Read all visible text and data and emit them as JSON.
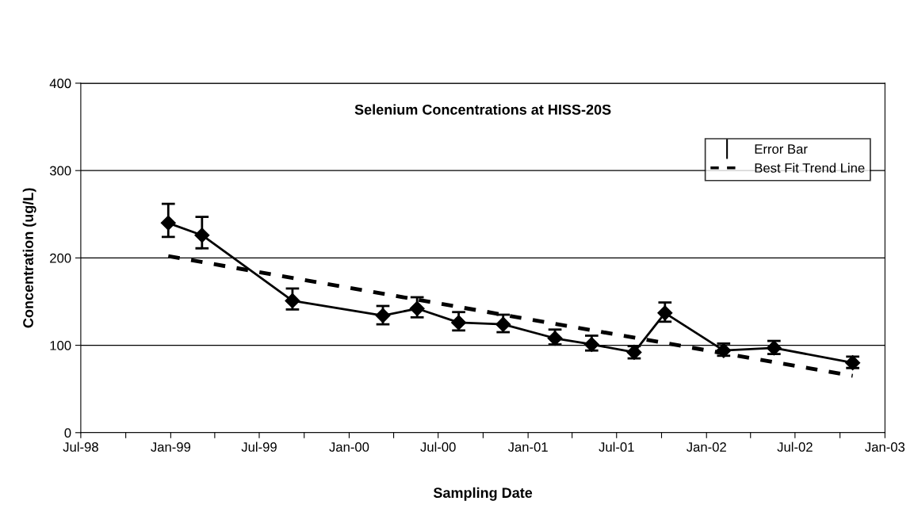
{
  "chart_data": {
    "type": "line",
    "title": "Selenium Concentrations at HISS-20S",
    "xlabel": "Sampling Date",
    "ylabel": "Concentration (ug/L)",
    "x": [
      "1998-12-27",
      "1999-03-06",
      "1999-09-07",
      "2000-03-10",
      "2000-05-19",
      "2000-08-12",
      "2000-11-11",
      "2001-02-25",
      "2001-05-11",
      "2001-08-06",
      "2001-10-08",
      "2002-02-05",
      "2002-05-19",
      "2002-10-27"
    ],
    "series": [
      {
        "name": "Error Bar",
        "color": "#000000",
        "marker": "diamond",
        "line_style": "solid",
        "values": [
          240,
          226,
          151,
          134,
          142,
          126,
          124,
          108,
          101,
          92,
          137,
          94,
          97,
          80
        ],
        "errors": [
          [
            224,
            262
          ],
          [
            211,
            247
          ],
          [
            141,
            165
          ],
          [
            124,
            145
          ],
          [
            132,
            155
          ],
          [
            117,
            138
          ],
          [
            115,
            135
          ],
          [
            101,
            118
          ],
          [
            94,
            111
          ],
          [
            85,
            99
          ],
          [
            127,
            149
          ],
          [
            88,
            102
          ],
          [
            90,
            105
          ],
          [
            74,
            87
          ]
        ]
      },
      {
        "name": "Best Fit Trend Line",
        "type": "line",
        "color": "#000000",
        "marker": "none",
        "line_style": "dashed",
        "x": [
          "1998-12-27",
          "2002-10-27"
        ],
        "values": [
          202,
          65
        ]
      }
    ],
    "xlim": [
      "1998-07",
      "2003-01"
    ],
    "xticks": [
      {
        "value": "1998-07",
        "label": "Jul-98"
      },
      {
        "value": "1998-10",
        "label": null
      },
      {
        "value": "1999-01",
        "label": "Jan-99"
      },
      {
        "value": "1999-04",
        "label": null
      },
      {
        "value": "1999-07",
        "label": "Jul-99"
      },
      {
        "value": "1999-10",
        "label": null
      },
      {
        "value": "2000-01",
        "label": "Jan-00"
      },
      {
        "value": "2000-04",
        "label": null
      },
      {
        "value": "2000-07",
        "label": "Jul-00"
      },
      {
        "value": "2000-10",
        "label": null
      },
      {
        "value": "2001-01",
        "label": "Jan-01"
      },
      {
        "value": "2001-04",
        "label": null
      },
      {
        "value": "2001-07",
        "label": "Jul-01"
      },
      {
        "value": "2001-10",
        "label": null
      },
      {
        "value": "2002-01",
        "label": "Jan-02"
      },
      {
        "value": "2002-04",
        "label": null
      },
      {
        "value": "2002-07",
        "label": "Jul-02"
      },
      {
        "value": "2002-10",
        "label": null
      },
      {
        "value": "2003-01",
        "label": "Jan-03"
      }
    ],
    "ylim": [
      0,
      400
    ],
    "yticks": [
      0,
      100,
      200,
      300,
      400
    ],
    "grid": "y",
    "legend": "top right"
  }
}
